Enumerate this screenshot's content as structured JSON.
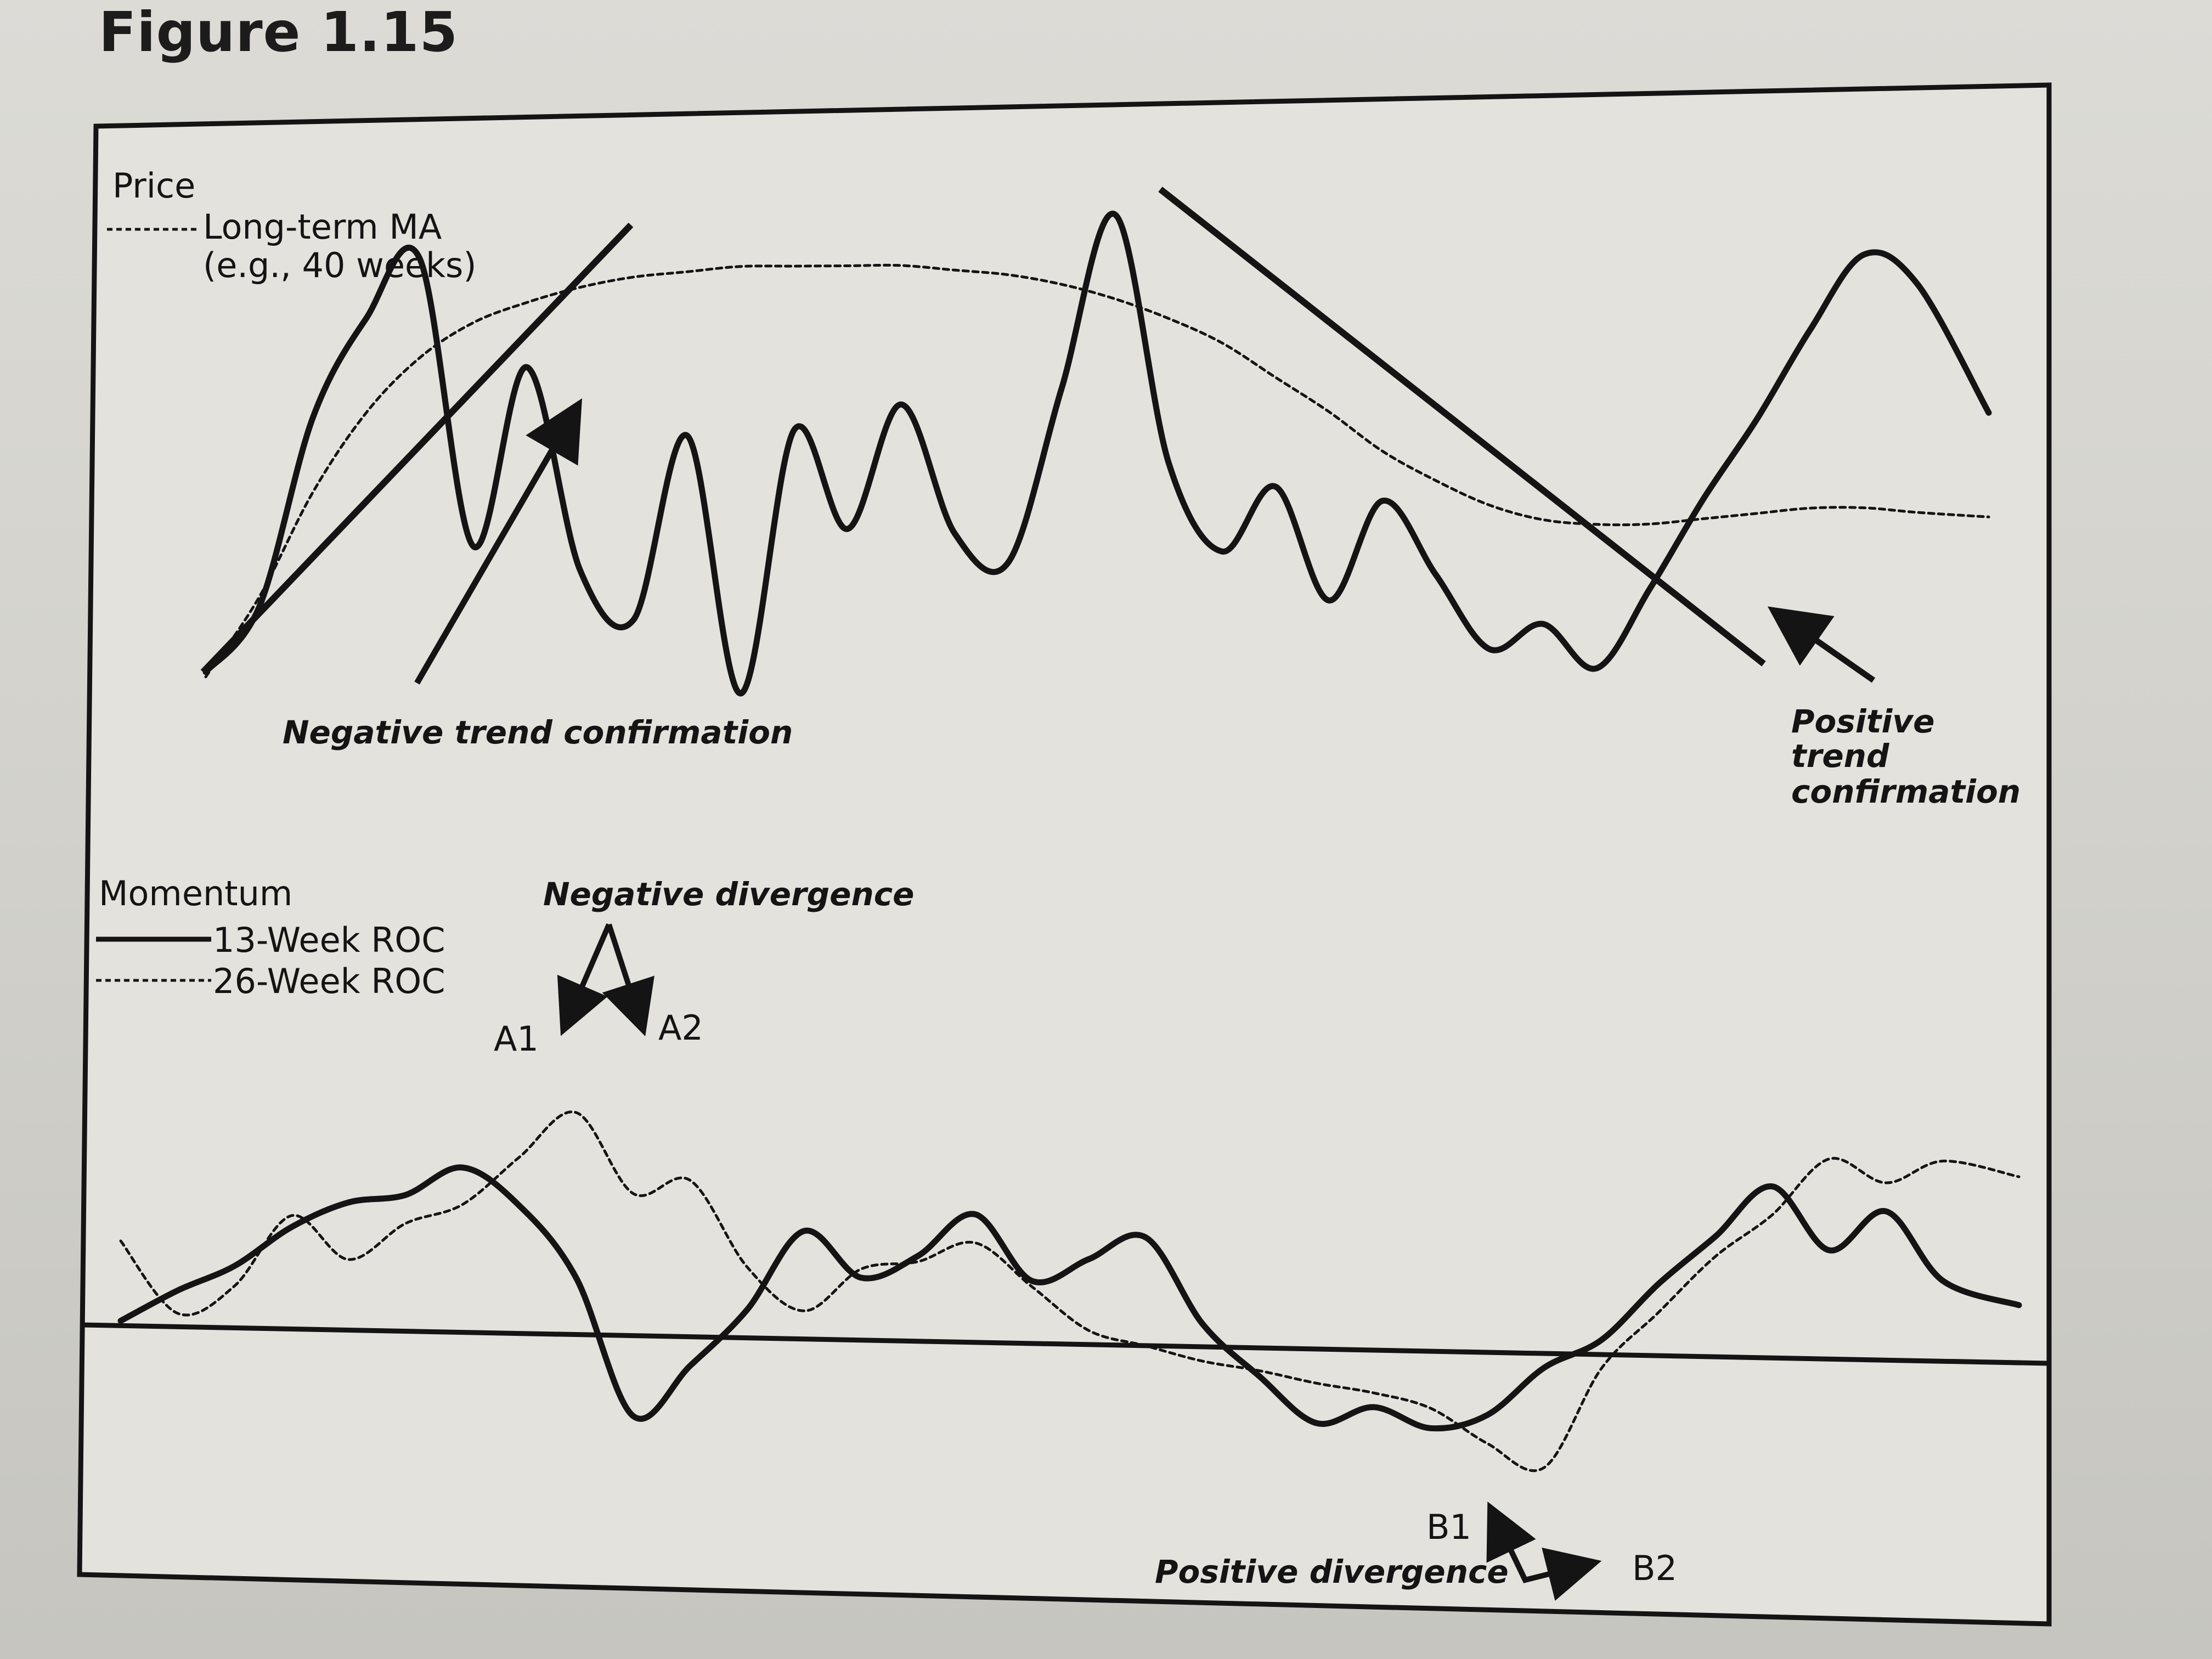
{
  "figure_title": "Figure 1.15",
  "chart_data": [
    {
      "type": "line",
      "panel": "price",
      "panel_label": "Price",
      "x": [
        0,
        0.03,
        0.06,
        0.09,
        0.12,
        0.15,
        0.18,
        0.21,
        0.24,
        0.27,
        0.3,
        0.33,
        0.36,
        0.39,
        0.42,
        0.45,
        0.48,
        0.51,
        0.54,
        0.57,
        0.6,
        0.63,
        0.66,
        0.69,
        0.72,
        0.75,
        0.78,
        0.81,
        0.84,
        0.87,
        0.9,
        0.93,
        0.96,
        1.0
      ],
      "series": [
        {
          "name": "Price",
          "style": "solid",
          "y": [
            0.05,
            0.18,
            0.56,
            0.76,
            0.88,
            0.3,
            0.66,
            0.25,
            0.15,
            0.52,
            0.0,
            0.53,
            0.33,
            0.58,
            0.32,
            0.26,
            0.61,
            0.96,
            0.46,
            0.28,
            0.41,
            0.18,
            0.38,
            0.23,
            0.08,
            0.13,
            0.04,
            0.2,
            0.38,
            0.54,
            0.72,
            0.87,
            0.81,
            0.55
          ]
        },
        {
          "name": "Long-term MA",
          "legend_label": "Long-term MA",
          "legend_sublabel": "(e.g., 40 weeks)",
          "style": "dashed",
          "y": [
            0.04,
            0.2,
            0.41,
            0.57,
            0.68,
            0.75,
            0.79,
            0.82,
            0.84,
            0.85,
            0.86,
            0.86,
            0.86,
            0.86,
            0.85,
            0.84,
            0.82,
            0.79,
            0.75,
            0.7,
            0.63,
            0.56,
            0.48,
            0.42,
            0.37,
            0.34,
            0.33,
            0.33,
            0.34,
            0.35,
            0.36,
            0.36,
            0.35,
            0.34
          ]
        }
      ],
      "annotations": [
        {
          "text": "Negative trend confirmation",
          "type": "arrow"
        },
        {
          "text": "Positive",
          "line2": "trend",
          "line3": "confirmation",
          "type": "arrow"
        }
      ],
      "trendlines": [
        {
          "type": "uptrend",
          "from_x": 0.02,
          "to_x": 0.27
        },
        {
          "type": "downtrend",
          "from_x": 0.59,
          "to_x": 0.86
        }
      ]
    },
    {
      "type": "line",
      "panel": "momentum",
      "panel_label": "Momentum",
      "x": [
        0,
        0.03,
        0.06,
        0.09,
        0.12,
        0.15,
        0.18,
        0.21,
        0.24,
        0.27,
        0.3,
        0.33,
        0.36,
        0.39,
        0.42,
        0.45,
        0.48,
        0.51,
        0.54,
        0.57,
        0.6,
        0.63,
        0.66,
        0.69,
        0.72,
        0.75,
        0.78,
        0.81,
        0.84,
        0.87,
        0.9,
        0.93,
        0.96,
        1.0
      ],
      "zero_line": true,
      "series": [
        {
          "name": "13-Week ROC",
          "style": "solid",
          "y": [
            0.02,
            0.13,
            0.22,
            0.36,
            0.45,
            0.48,
            0.58,
            0.45,
            0.2,
            -0.28,
            -0.1,
            0.1,
            0.38,
            0.22,
            0.3,
            0.45,
            0.22,
            0.3,
            0.38,
            0.08,
            -0.1,
            -0.26,
            -0.2,
            -0.27,
            -0.22,
            -0.05,
            0.05,
            0.25,
            0.42,
            0.6,
            0.38,
            0.52,
            0.28,
            0.2
          ]
        },
        {
          "name": "26-Week ROC",
          "style": "dashed",
          "y": [
            0.3,
            0.05,
            0.15,
            0.4,
            0.25,
            0.38,
            0.45,
            0.62,
            0.78,
            0.5,
            0.55,
            0.25,
            0.1,
            0.25,
            0.28,
            0.35,
            0.2,
            0.05,
            0.0,
            -0.05,
            -0.08,
            -0.12,
            -0.15,
            -0.2,
            -0.32,
            -0.4,
            -0.05,
            0.15,
            0.35,
            0.5,
            0.7,
            0.62,
            0.7,
            0.65
          ]
        }
      ],
      "annotations": [
        {
          "text": "Negative divergence",
          "points": [
            "A1",
            "A2"
          ]
        },
        {
          "text": "Positive divergence",
          "points": [
            "B1",
            "B2"
          ]
        }
      ]
    }
  ],
  "labels": {
    "price": "Price",
    "long_term_ma": "Long-term MA",
    "long_term_ma_sub": "(e.g., 40 weeks)",
    "negative_trend_confirmation": "Negative trend confirmation",
    "positive_1": "Positive",
    "positive_2": "trend",
    "positive_3": "confirmation",
    "momentum": "Momentum",
    "roc13": "13-Week ROC",
    "roc26": "26-Week ROC",
    "negative_divergence": "Negative divergence",
    "a1": "A1",
    "a2": "A2",
    "b1": "B1",
    "b2": "B2",
    "positive_divergence": "Positive divergence"
  }
}
